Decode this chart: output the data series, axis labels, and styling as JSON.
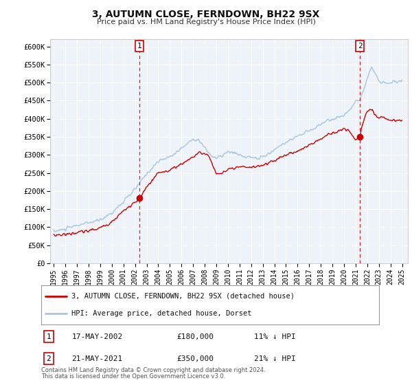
{
  "title": "3, AUTUMN CLOSE, FERNDOWN, BH22 9SX",
  "subtitle": "Price paid vs. HM Land Registry's House Price Index (HPI)",
  "ylim": [
    0,
    620000
  ],
  "xlim_start": 1994.7,
  "xlim_end": 2025.5,
  "yticks": [
    0,
    50000,
    100000,
    150000,
    200000,
    250000,
    300000,
    350000,
    400000,
    450000,
    500000,
    550000,
    600000
  ],
  "ytick_labels": [
    "£0",
    "£50K",
    "£100K",
    "£150K",
    "£200K",
    "£250K",
    "£300K",
    "£350K",
    "£400K",
    "£450K",
    "£500K",
    "£550K",
    "£600K"
  ],
  "hpi_color": "#a8c4e0",
  "price_color": "#cc0000",
  "marker_color": "#cc0000",
  "vline_color": "#cc0000",
  "bg_color": "#eef2f9",
  "grid_color": "#ffffff",
  "legend_label_price": "3, AUTUMN CLOSE, FERNDOWN, BH22 9SX (detached house)",
  "legend_label_hpi": "HPI: Average price, detached house, Dorset",
  "sale1_date": "17-MAY-2002",
  "sale1_price": "£180,000",
  "sale1_hpi": "11% ↓ HPI",
  "sale1_year": 2002.38,
  "sale1_value": 180000,
  "sale2_date": "21-MAY-2021",
  "sale2_price": "£350,000",
  "sale2_hpi": "21% ↓ HPI",
  "sale2_year": 2021.38,
  "sale2_value": 350000,
  "footer1": "Contains HM Land Registry data © Crown copyright and database right 2024.",
  "footer2": "This data is licensed under the Open Government Licence v3.0."
}
